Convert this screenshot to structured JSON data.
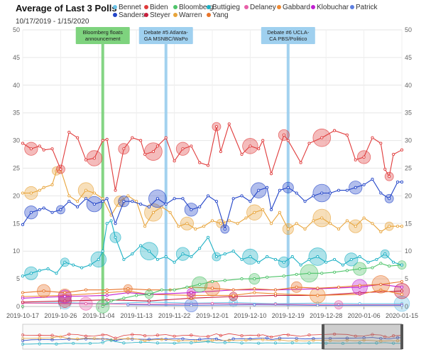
{
  "chart_data": {
    "type": "line",
    "title": "Average of Last 3 Polls",
    "subtitle": "10/17/2019 - 1/15/2020",
    "x_type": "date",
    "x_range": [
      "2019-10-17",
      "2020-01-15"
    ],
    "x_ticks": [
      "2019-10-17",
      "2019-10-26",
      "2019-11-04",
      "2019-11-13",
      "2019-11-22",
      "2019-12-01",
      "2019-12-10",
      "2019-12-19",
      "2019-12-28",
      "2020-01-06",
      "2020-01-15"
    ],
    "ylim": [
      0,
      50
    ],
    "y_ticks": [
      0,
      5,
      10,
      15,
      20,
      25,
      30,
      35,
      40,
      45,
      50
    ],
    "grid": true,
    "legend_position": "top",
    "events": [
      {
        "date": "2019-11-05",
        "label": [
          "Bloomberg floats",
          "announcement"
        ],
        "color": "#7ed37e"
      },
      {
        "date": "2019-11-20",
        "label": [
          "Debate #5 Atlanta-",
          "GA MSNBC/WaPo"
        ],
        "color": "#9fd0ef"
      },
      {
        "date": "2019-12-19",
        "label": [
          "Debate #6 UCLA-",
          "CA PBS/Politico"
        ],
        "color": "#9fd0ef"
      }
    ],
    "series": [
      {
        "name": "Bennet",
        "color": "#6cc3e8",
        "values": [
          [
            0,
            0.6
          ],
          [
            10,
            0.7
          ],
          [
            20,
            0.5
          ],
          [
            30,
            0.8
          ],
          [
            40,
            0.6
          ],
          [
            50,
            0.7
          ],
          [
            60,
            0.5
          ],
          [
            70,
            0.6
          ],
          [
            80,
            0.5
          ],
          [
            90,
            0.5
          ]
        ]
      },
      {
        "name": "Biden",
        "color": "#e03b3b",
        "values": [
          [
            0,
            29.5
          ],
          [
            2,
            28.5
          ],
          [
            4,
            29.0
          ],
          [
            5,
            28.3
          ],
          [
            7,
            28.5
          ],
          [
            9,
            24.8
          ],
          [
            11,
            31.5
          ],
          [
            13,
            30.5
          ],
          [
            15,
            26.5
          ],
          [
            17,
            26.8
          ],
          [
            19,
            30.0
          ],
          [
            20,
            30.2
          ],
          [
            22,
            21.0
          ],
          [
            24,
            28.5
          ],
          [
            26,
            30.5
          ],
          [
            28,
            30.0
          ],
          [
            29,
            27.5
          ],
          [
            31,
            28.0
          ],
          [
            32,
            29.0
          ],
          [
            34,
            30.5
          ],
          [
            36,
            26.3
          ],
          [
            38,
            28.5
          ],
          [
            40,
            29.0
          ],
          [
            42,
            26.0
          ],
          [
            44,
            25.5
          ],
          [
            46,
            32.5
          ],
          [
            47,
            28.0
          ],
          [
            49,
            33.0
          ],
          [
            52,
            27.5
          ],
          [
            54,
            29.0
          ],
          [
            56,
            28.5
          ],
          [
            57,
            30.0
          ],
          [
            59,
            24.0
          ],
          [
            62,
            31.0
          ],
          [
            63,
            30.0
          ],
          [
            66,
            26.0
          ],
          [
            68,
            29.5
          ],
          [
            71,
            30.5
          ],
          [
            74,
            31.8
          ],
          [
            77,
            31.0
          ],
          [
            79,
            26.5
          ],
          [
            81,
            27.0
          ],
          [
            83,
            30.5
          ],
          [
            85,
            29.5
          ],
          [
            86,
            24.8
          ],
          [
            87,
            23.5
          ],
          [
            88,
            27.5
          ],
          [
            90,
            28.3
          ]
        ]
      },
      {
        "name": "Bloomberg",
        "color": "#4fc46a",
        "values": [
          [
            0,
            0
          ],
          [
            19,
            0
          ],
          [
            21,
            1.0
          ],
          [
            24,
            1.5
          ],
          [
            27,
            2.0
          ],
          [
            30,
            2.2
          ],
          [
            33,
            3.0
          ],
          [
            36,
            3.0
          ],
          [
            39,
            3.5
          ],
          [
            42,
            4.0
          ],
          [
            45,
            4.5
          ],
          [
            48,
            4.7
          ],
          [
            52,
            5.0
          ],
          [
            55,
            5.0
          ],
          [
            58,
            5.3
          ],
          [
            62,
            5.5
          ],
          [
            65,
            5.8
          ],
          [
            68,
            6.0
          ],
          [
            71,
            6.0
          ],
          [
            74,
            6.2
          ],
          [
            77,
            6.5
          ],
          [
            80,
            6.8
          ],
          [
            83,
            7.0
          ],
          [
            85,
            7.8
          ],
          [
            87,
            7.3
          ],
          [
            90,
            7.5
          ]
        ]
      },
      {
        "name": "Buttigieg",
        "color": "#1bb0c4",
        "values": [
          [
            0,
            5.5
          ],
          [
            2,
            6.0
          ],
          [
            4,
            6.5
          ],
          [
            6,
            6.8
          ],
          [
            8,
            6.0
          ],
          [
            10,
            8.0
          ],
          [
            12,
            7.5
          ],
          [
            14,
            7.0
          ],
          [
            16,
            7.5
          ],
          [
            18,
            8.5
          ],
          [
            19,
            10.0
          ],
          [
            20,
            15.0
          ],
          [
            21,
            15.5
          ],
          [
            22,
            12.5
          ],
          [
            24,
            8.5
          ],
          [
            26,
            9.5
          ],
          [
            28,
            11.0
          ],
          [
            30,
            10.0
          ],
          [
            32,
            8.5
          ],
          [
            34,
            9.0
          ],
          [
            36,
            8.0
          ],
          [
            38,
            9.5
          ],
          [
            40,
            9.0
          ],
          [
            42,
            10.5
          ],
          [
            44,
            12.5
          ],
          [
            46,
            9.0
          ],
          [
            48,
            9.5
          ],
          [
            50,
            10.0
          ],
          [
            52,
            8.5
          ],
          [
            54,
            9.0
          ],
          [
            56,
            8.0
          ],
          [
            58,
            9.0
          ],
          [
            60,
            8.5
          ],
          [
            62,
            8.0
          ],
          [
            64,
            9.0
          ],
          [
            66,
            7.5
          ],
          [
            68,
            8.5
          ],
          [
            70,
            9.0
          ],
          [
            72,
            8.0
          ],
          [
            74,
            8.5
          ],
          [
            76,
            7.5
          ],
          [
            78,
            8.5
          ],
          [
            80,
            9.0
          ],
          [
            82,
            8.0
          ],
          [
            84,
            8.5
          ],
          [
            86,
            9.5
          ],
          [
            88,
            8.0
          ],
          [
            90,
            7.5
          ]
        ]
      },
      {
        "name": "Delaney",
        "color": "#e860a8",
        "values": [
          [
            0,
            0.6
          ],
          [
            15,
            0.5
          ],
          [
            30,
            0.4
          ],
          [
            45,
            0.5
          ],
          [
            60,
            0.4
          ],
          [
            75,
            0.3
          ],
          [
            90,
            0.3
          ]
        ]
      },
      {
        "name": "Gabbard",
        "color": "#ef8a33",
        "values": [
          [
            0,
            1.8
          ],
          [
            10,
            2.0
          ],
          [
            20,
            2.5
          ],
          [
            25,
            2.8
          ],
          [
            30,
            2.2
          ],
          [
            40,
            2.0
          ],
          [
            50,
            2.0
          ],
          [
            55,
            2.5
          ],
          [
            60,
            2.3
          ],
          [
            70,
            2.0
          ],
          [
            80,
            2.2
          ],
          [
            85,
            3.0
          ],
          [
            90,
            2.2
          ]
        ]
      },
      {
        "name": "Klobuchar",
        "color": "#c020d0",
        "values": [
          [
            0,
            1.5
          ],
          [
            10,
            1.8
          ],
          [
            20,
            2.0
          ],
          [
            25,
            2.5
          ],
          [
            30,
            2.2
          ],
          [
            40,
            2.5
          ],
          [
            50,
            3.0
          ],
          [
            60,
            3.0
          ],
          [
            70,
            3.2
          ],
          [
            80,
            3.5
          ],
          [
            85,
            4.0
          ],
          [
            90,
            3.5
          ]
        ]
      },
      {
        "name": "Patrick",
        "color": "#5d7fe0",
        "values": [
          [
            25,
            0.3
          ],
          [
            40,
            0.2
          ],
          [
            55,
            0.3
          ],
          [
            70,
            0.2
          ],
          [
            90,
            0.2
          ]
        ]
      },
      {
        "name": "Sanders",
        "color": "#2244c8",
        "values": [
          [
            0,
            14.8
          ],
          [
            2,
            17.0
          ],
          [
            4,
            17.5
          ],
          [
            5,
            17.8
          ],
          [
            7,
            17.0
          ],
          [
            9,
            17.5
          ],
          [
            11,
            19.0
          ],
          [
            13,
            18.0
          ],
          [
            15,
            19.5
          ],
          [
            17,
            18.5
          ],
          [
            19,
            19.0
          ],
          [
            20,
            19.5
          ],
          [
            22,
            15.0
          ],
          [
            24,
            19.0
          ],
          [
            26,
            19.0
          ],
          [
            28,
            18.5
          ],
          [
            30,
            18.0
          ],
          [
            32,
            19.5
          ],
          [
            34,
            18.5
          ],
          [
            36,
            19.5
          ],
          [
            38,
            19.5
          ],
          [
            40,
            17.5
          ],
          [
            42,
            18.0
          ],
          [
            44,
            20.0
          ],
          [
            46,
            19.0
          ],
          [
            48,
            14.0
          ],
          [
            50,
            19.5
          ],
          [
            52,
            20.0
          ],
          [
            54,
            19.0
          ],
          [
            56,
            21.0
          ],
          [
            58,
            21.5
          ],
          [
            59,
            17.5
          ],
          [
            61,
            21.0
          ],
          [
            63,
            21.5
          ],
          [
            65,
            20.5
          ],
          [
            67,
            19.0
          ],
          [
            69,
            20.0
          ],
          [
            71,
            20.5
          ],
          [
            73,
            20.5
          ],
          [
            75,
            21.0
          ],
          [
            77,
            21.0
          ],
          [
            79,
            21.5
          ],
          [
            81,
            22.0
          ],
          [
            83,
            23.0
          ],
          [
            85,
            20.5
          ],
          [
            87,
            19.5
          ],
          [
            89,
            22.5
          ],
          [
            90,
            22.5
          ]
        ]
      },
      {
        "name": "Steyer",
        "color": "#c81e3c",
        "values": [
          [
            0,
            0.8
          ],
          [
            10,
            1.0
          ],
          [
            20,
            1.2
          ],
          [
            30,
            1.0
          ],
          [
            40,
            1.5
          ],
          [
            50,
            1.8
          ],
          [
            60,
            2.0
          ],
          [
            70,
            2.0
          ],
          [
            80,
            2.5
          ],
          [
            90,
            2.8
          ]
        ]
      },
      {
        "name": "Warren",
        "color": "#e8a43a",
        "values": [
          [
            0,
            20.5
          ],
          [
            2,
            20.5
          ],
          [
            4,
            21.0
          ],
          [
            5,
            21.5
          ],
          [
            7,
            22.0
          ],
          [
            8,
            24.5
          ],
          [
            9,
            24.8
          ],
          [
            11,
            20.0
          ],
          [
            13,
            19.0
          ],
          [
            15,
            21.0
          ],
          [
            17,
            20.5
          ],
          [
            19,
            19.5
          ],
          [
            21,
            16.5
          ],
          [
            23,
            19.0
          ],
          [
            25,
            20.0
          ],
          [
            27,
            19.0
          ],
          [
            29,
            14.5
          ],
          [
            31,
            17.0
          ],
          [
            33,
            18.0
          ],
          [
            35,
            17.0
          ],
          [
            37,
            14.5
          ],
          [
            39,
            15.0
          ],
          [
            41,
            14.0
          ],
          [
            43,
            14.5
          ],
          [
            45,
            15.5
          ],
          [
            47,
            15.0
          ],
          [
            49,
            15.5
          ],
          [
            51,
            15.0
          ],
          [
            53,
            16.0
          ],
          [
            55,
            17.0
          ],
          [
            57,
            17.5
          ],
          [
            59,
            15.0
          ],
          [
            61,
            17.0
          ],
          [
            63,
            14.0
          ],
          [
            65,
            15.0
          ],
          [
            67,
            14.0
          ],
          [
            69,
            15.5
          ],
          [
            71,
            16.0
          ],
          [
            73,
            15.0
          ],
          [
            75,
            14.0
          ],
          [
            77,
            15.5
          ],
          [
            79,
            14.5
          ],
          [
            81,
            16.0
          ],
          [
            83,
            15.0
          ],
          [
            85,
            13.5
          ],
          [
            87,
            14.5
          ],
          [
            89,
            14.5
          ],
          [
            90,
            14.5
          ]
        ]
      },
      {
        "name": "Yang",
        "color": "#e8742a",
        "values": [
          [
            0,
            2.5
          ],
          [
            5,
            2.8
          ],
          [
            10,
            2.5
          ],
          [
            15,
            3.0
          ],
          [
            20,
            3.0
          ],
          [
            25,
            3.2
          ],
          [
            30,
            3.0
          ],
          [
            35,
            3.0
          ],
          [
            40,
            3.5
          ],
          [
            45,
            3.3
          ],
          [
            50,
            3.0
          ],
          [
            55,
            3.2
          ],
          [
            60,
            3.0
          ],
          [
            65,
            3.5
          ],
          [
            70,
            3.3
          ],
          [
            75,
            3.5
          ],
          [
            80,
            3.8
          ],
          [
            85,
            4.0
          ],
          [
            90,
            4.5
          ]
        ]
      }
    ]
  }
}
